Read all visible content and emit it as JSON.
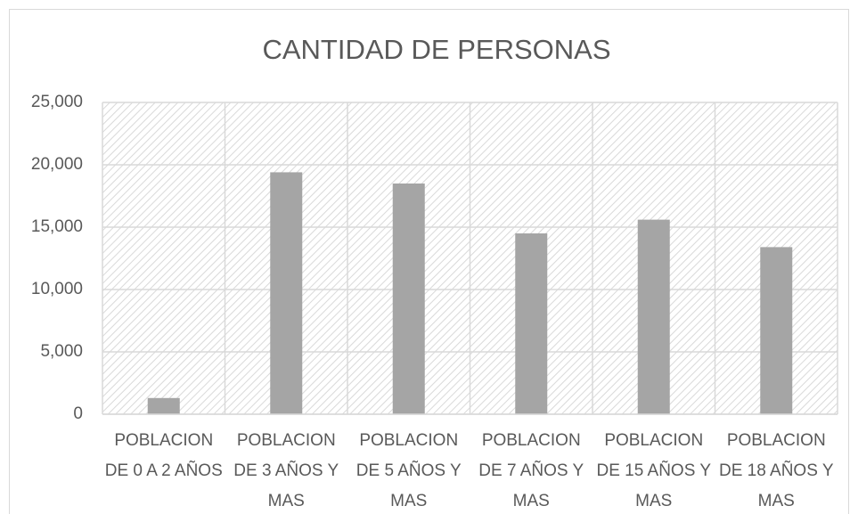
{
  "chart_data": {
    "type": "bar",
    "title": "CANTIDAD DE PERSONAS",
    "categories": [
      "POBLACION DE 0 A 2 AÑOS",
      "POBLACION DE 3 AÑOS Y MAS",
      "POBLACION DE 5 AÑOS Y MAS",
      "POBLACION DE 7 AÑOS Y MAS",
      "POBLACION DE 15 AÑOS Y MAS",
      "POBLACION DE 18 AÑOS Y MAS"
    ],
    "values": [
      1300,
      19400,
      18500,
      14500,
      15600,
      13400
    ],
    "color": "#a5a5a5",
    "ylim": [
      0,
      25000
    ],
    "yticks": [
      0,
      {
        "value": 5000,
        "label": "5,000"
      },
      {
        "value": 10000,
        "label": "10,000"
      },
      {
        "value": 15000,
        "label": "15,000"
      },
      {
        "value": 20000,
        "label": "20,000"
      },
      {
        "value": 25000,
        "label": "25,000"
      }
    ],
    "grid": true
  }
}
